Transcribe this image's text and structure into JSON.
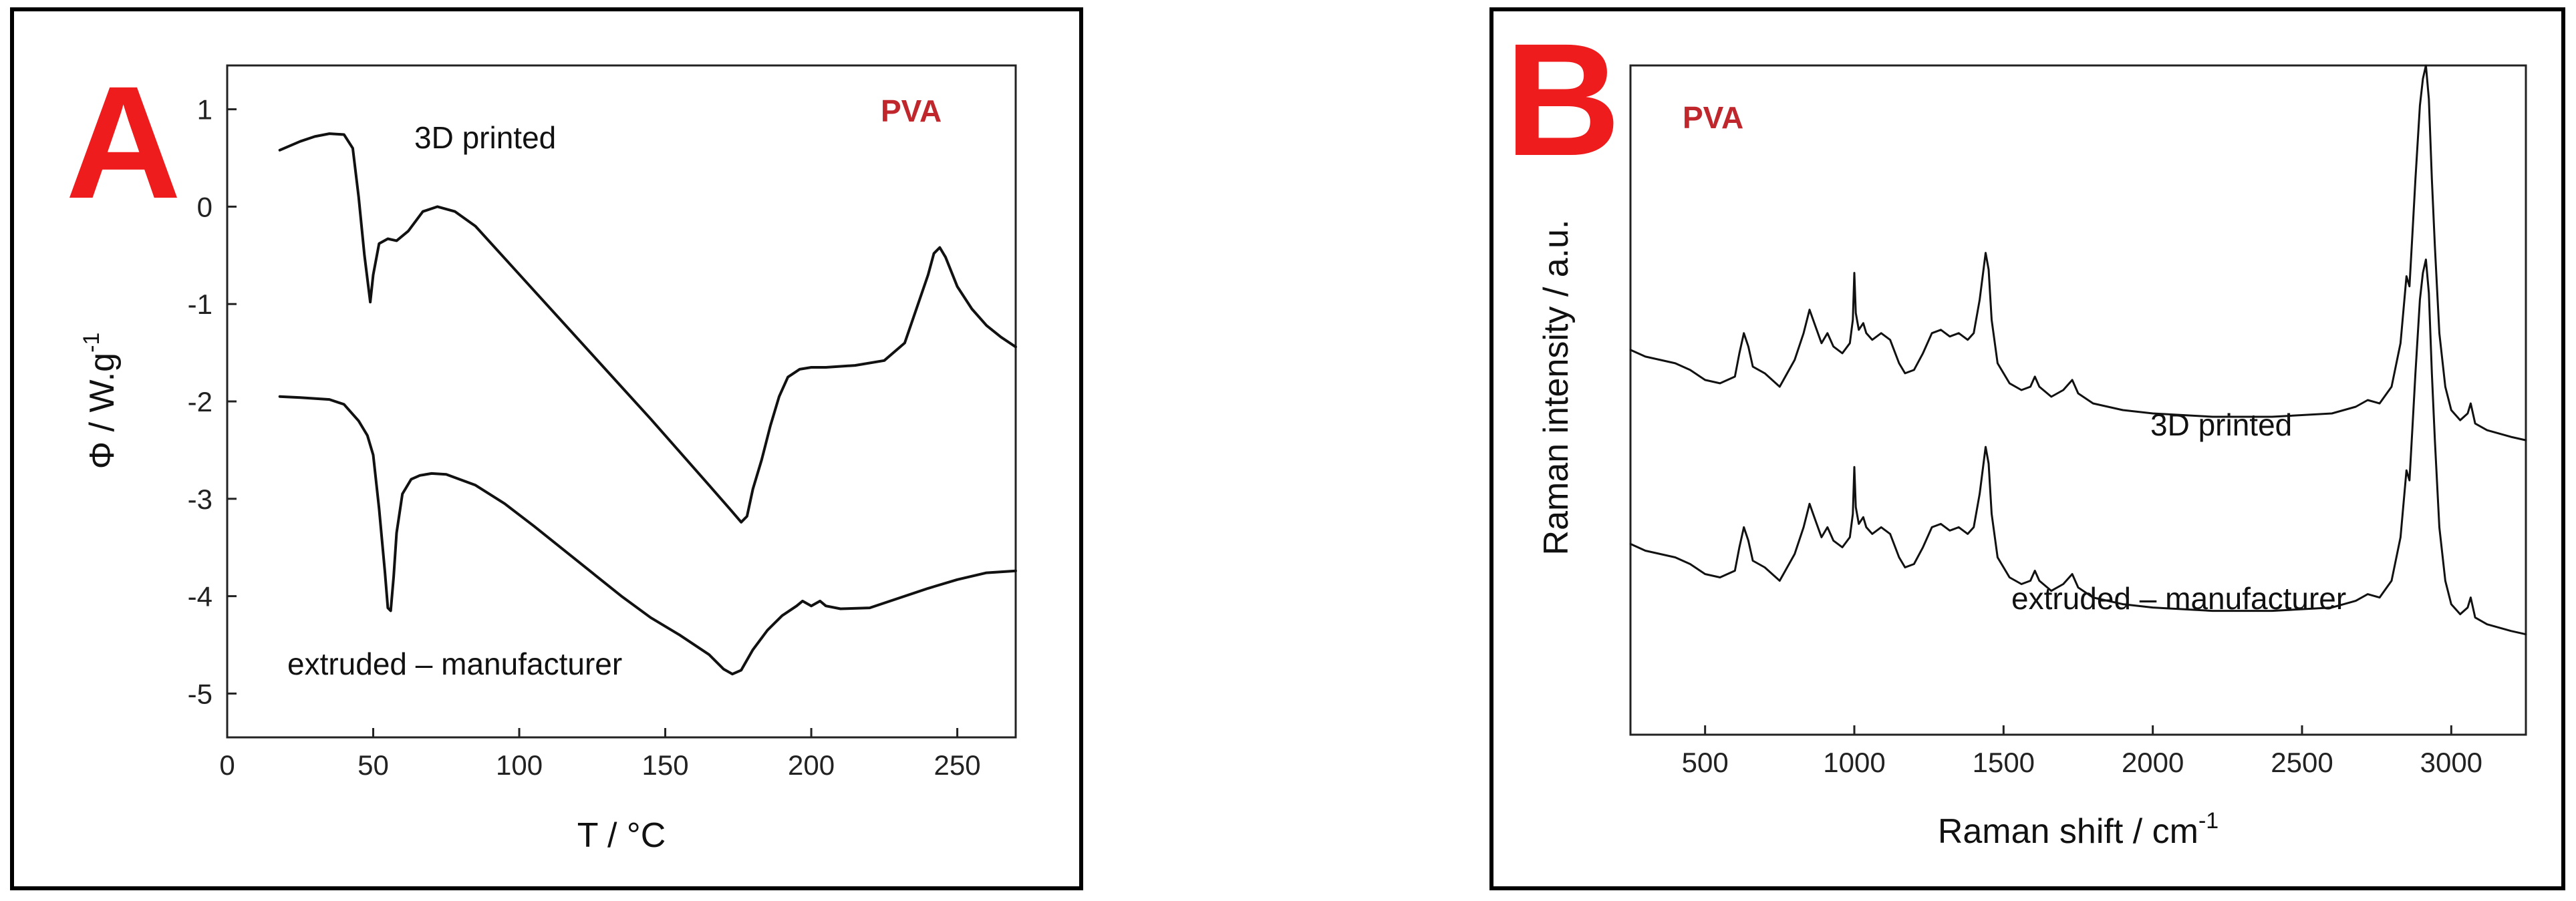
{
  "panels": [
    {
      "letter": "A",
      "material_label": "PVA",
      "annotations": [
        "3D printed",
        "extruded – manufacturer"
      ]
    },
    {
      "letter": "B",
      "material_label": "PVA",
      "annotations": [
        "3D printed",
        "extruded – manufacturer"
      ]
    }
  ],
  "colors": {
    "letter": "#ee1c1c",
    "material_label": "#c0272d",
    "line": "#111111"
  },
  "chart_data": [
    {
      "type": "line",
      "title": "",
      "xlabel": "T  /  °C",
      "ylabel_main": "Φ  /  W.g",
      "ylabel_sup": "-1",
      "xlim": [
        0,
        270
      ],
      "ylim": [
        -5.45,
        1.45
      ],
      "xticks": [
        0,
        50,
        100,
        150,
        200,
        250
      ],
      "yticks": [
        1,
        0,
        -1,
        -2,
        -3,
        -4,
        -5
      ],
      "series": [
        {
          "name": "3D printed",
          "x": [
            18,
            25,
            30,
            35,
            40,
            43,
            45,
            47,
            49,
            50,
            52,
            55,
            58,
            62,
            67,
            72,
            78,
            85,
            95,
            105,
            115,
            125,
            135,
            145,
            155,
            165,
            172,
            176,
            178,
            180,
            183,
            186,
            189,
            192,
            196,
            200,
            205,
            215,
            225,
            232,
            236,
            240,
            242,
            244,
            246,
            250,
            255,
            260,
            265,
            270
          ],
          "y": [
            0.58,
            0.67,
            0.72,
            0.75,
            0.74,
            0.6,
            0.1,
            -0.5,
            -0.98,
            -0.7,
            -0.38,
            -0.33,
            -0.35,
            -0.25,
            -0.05,
            0.0,
            -0.05,
            -0.2,
            -0.53,
            -0.86,
            -1.19,
            -1.52,
            -1.85,
            -2.18,
            -2.52,
            -2.86,
            -3.1,
            -3.24,
            -3.18,
            -2.9,
            -2.6,
            -2.25,
            -1.95,
            -1.75,
            -1.67,
            -1.65,
            -1.65,
            -1.63,
            -1.58,
            -1.4,
            -1.05,
            -0.7,
            -0.48,
            -0.42,
            -0.52,
            -0.82,
            -1.05,
            -1.22,
            -1.34,
            -1.44
          ]
        },
        {
          "name": "extruded – manufacturer",
          "x": [
            18,
            25,
            35,
            40,
            45,
            48,
            50,
            52,
            54,
            55,
            56,
            57,
            58,
            60,
            63,
            66,
            70,
            75,
            85,
            95,
            105,
            115,
            125,
            135,
            145,
            155,
            165,
            170,
            173,
            176,
            180,
            185,
            190,
            195,
            197,
            200,
            203,
            205,
            210,
            220,
            230,
            240,
            250,
            260,
            270
          ],
          "y": [
            -1.95,
            -1.96,
            -1.98,
            -2.03,
            -2.2,
            -2.35,
            -2.55,
            -3.1,
            -3.75,
            -4.12,
            -4.15,
            -3.8,
            -3.35,
            -2.95,
            -2.8,
            -2.76,
            -2.74,
            -2.75,
            -2.86,
            -3.05,
            -3.28,
            -3.52,
            -3.76,
            -4.0,
            -4.22,
            -4.4,
            -4.6,
            -4.75,
            -4.8,
            -4.76,
            -4.55,
            -4.35,
            -4.2,
            -4.1,
            -4.05,
            -4.1,
            -4.05,
            -4.1,
            -4.13,
            -4.12,
            -4.02,
            -3.92,
            -3.83,
            -3.76,
            -3.74
          ]
        }
      ]
    },
    {
      "type": "line",
      "title": "",
      "xlabel_main": "Raman shift  /  cm",
      "xlabel_sup": "-1",
      "ylabel": "Raman intensity  /  a.u.",
      "xlim": [
        250,
        3250
      ],
      "ylim": [
        0,
        1.0
      ],
      "xticks": [
        500,
        1000,
        1500,
        2000,
        2500,
        3000
      ],
      "series": [
        {
          "name": "3D printed",
          "x": [
            250,
            300,
            350,
            400,
            450,
            500,
            550,
            600,
            615,
            630,
            645,
            660,
            700,
            750,
            800,
            830,
            850,
            870,
            890,
            910,
            930,
            960,
            985,
            995,
            1000,
            1005,
            1015,
            1030,
            1040,
            1060,
            1090,
            1120,
            1150,
            1170,
            1200,
            1230,
            1260,
            1290,
            1320,
            1350,
            1380,
            1400,
            1420,
            1440,
            1450,
            1460,
            1480,
            1520,
            1560,
            1590,
            1605,
            1620,
            1660,
            1700,
            1730,
            1750,
            1800,
            1900,
            2000,
            2200,
            2400,
            2600,
            2680,
            2720,
            2760,
            2800,
            2830,
            2850,
            2860,
            2870,
            2880,
            2895,
            2905,
            2915,
            2925,
            2935,
            2945,
            2960,
            2980,
            3000,
            3030,
            3055,
            3065,
            3080,
            3120,
            3160,
            3200,
            3250
          ],
          "y": [
            0.575,
            0.565,
            0.56,
            0.555,
            0.545,
            0.53,
            0.525,
            0.535,
            0.57,
            0.6,
            0.58,
            0.55,
            0.54,
            0.52,
            0.56,
            0.6,
            0.635,
            0.61,
            0.585,
            0.6,
            0.58,
            0.57,
            0.585,
            0.62,
            0.69,
            0.63,
            0.605,
            0.615,
            0.6,
            0.59,
            0.6,
            0.59,
            0.555,
            0.54,
            0.545,
            0.57,
            0.6,
            0.605,
            0.595,
            0.6,
            0.59,
            0.6,
            0.65,
            0.72,
            0.695,
            0.62,
            0.555,
            0.525,
            0.515,
            0.52,
            0.535,
            0.52,
            0.505,
            0.515,
            0.53,
            0.51,
            0.495,
            0.485,
            0.48,
            0.475,
            0.475,
            0.48,
            0.49,
            0.5,
            0.495,
            0.52,
            0.585,
            0.685,
            0.67,
            0.75,
            0.83,
            0.94,
            0.98,
            1.0,
            0.95,
            0.83,
            0.73,
            0.6,
            0.52,
            0.485,
            0.47,
            0.48,
            0.495,
            0.465,
            0.455,
            0.45,
            0.445,
            0.44
          ]
        },
        {
          "name": "extruded – manufacturer",
          "x": [
            250,
            300,
            350,
            400,
            450,
            500,
            550,
            600,
            615,
            630,
            645,
            660,
            700,
            750,
            800,
            830,
            850,
            870,
            890,
            910,
            930,
            960,
            985,
            995,
            1000,
            1005,
            1015,
            1030,
            1040,
            1060,
            1090,
            1120,
            1150,
            1170,
            1200,
            1230,
            1260,
            1290,
            1320,
            1350,
            1380,
            1400,
            1420,
            1440,
            1450,
            1460,
            1480,
            1520,
            1560,
            1590,
            1605,
            1620,
            1660,
            1700,
            1730,
            1750,
            1800,
            1900,
            2000,
            2200,
            2400,
            2600,
            2680,
            2720,
            2760,
            2800,
            2830,
            2850,
            2860,
            2870,
            2880,
            2895,
            2905,
            2915,
            2925,
            2935,
            2945,
            2960,
            2980,
            3000,
            3030,
            3055,
            3065,
            3080,
            3120,
            3160,
            3200,
            3250
          ],
          "y": [
            0.285,
            0.275,
            0.27,
            0.265,
            0.255,
            0.24,
            0.235,
            0.245,
            0.28,
            0.31,
            0.29,
            0.26,
            0.25,
            0.23,
            0.27,
            0.31,
            0.345,
            0.32,
            0.295,
            0.31,
            0.29,
            0.28,
            0.295,
            0.33,
            0.4,
            0.34,
            0.315,
            0.325,
            0.31,
            0.3,
            0.31,
            0.3,
            0.265,
            0.25,
            0.255,
            0.28,
            0.31,
            0.315,
            0.305,
            0.31,
            0.3,
            0.31,
            0.36,
            0.43,
            0.405,
            0.33,
            0.265,
            0.235,
            0.225,
            0.23,
            0.245,
            0.23,
            0.215,
            0.225,
            0.24,
            0.22,
            0.205,
            0.195,
            0.19,
            0.185,
            0.185,
            0.19,
            0.2,
            0.21,
            0.205,
            0.23,
            0.295,
            0.395,
            0.38,
            0.46,
            0.54,
            0.65,
            0.69,
            0.71,
            0.66,
            0.54,
            0.44,
            0.31,
            0.23,
            0.195,
            0.18,
            0.19,
            0.205,
            0.175,
            0.165,
            0.16,
            0.155,
            0.15
          ]
        }
      ]
    }
  ]
}
